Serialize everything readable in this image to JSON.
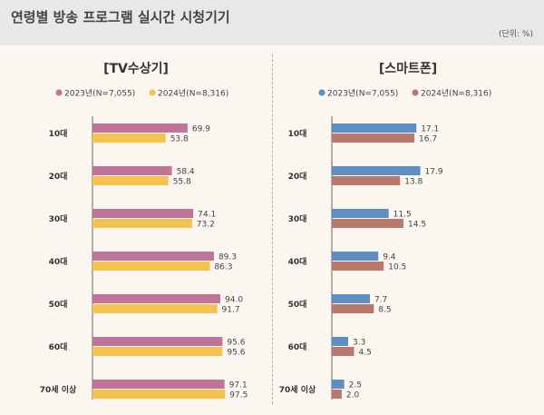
{
  "page": {
    "title": "연령별 방송 프로그램 실시간 시청기기",
    "unit": "(단위: %)"
  },
  "chart_data": [
    {
      "type": "bar",
      "orientation": "horizontal",
      "title": "[TV수상기]",
      "categories": [
        "10대",
        "20대",
        "30대",
        "40대",
        "50대",
        "60대",
        "70세 이상"
      ],
      "series": [
        {
          "name": "2023년(N=7,055)",
          "color": "#c0749a",
          "values": [
            69.9,
            58.4,
            74.1,
            89.3,
            94.0,
            95.6,
            97.1
          ]
        },
        {
          "name": "2024년(N=8,316)",
          "color": "#f5c24e",
          "values": [
            53.8,
            55.8,
            73.2,
            86.3,
            91.7,
            95.6,
            97.5
          ]
        }
      ],
      "xlim": [
        0,
        100
      ]
    },
    {
      "type": "bar",
      "orientation": "horizontal",
      "title": "[스마트폰]",
      "categories": [
        "10대",
        "20대",
        "30대",
        "40대",
        "50대",
        "60대",
        "70세 이상"
      ],
      "series": [
        {
          "name": "2023년(N=7,055)",
          "color": "#5e8fc2",
          "values": [
            17.1,
            17.9,
            11.5,
            9.4,
            7.7,
            3.3,
            2.5
          ]
        },
        {
          "name": "2024년(N=8,316)",
          "color": "#b8796a",
          "values": [
            16.7,
            13.8,
            14.5,
            10.5,
            8.5,
            4.5,
            2.0
          ]
        }
      ],
      "xlim": [
        0,
        20
      ]
    }
  ]
}
